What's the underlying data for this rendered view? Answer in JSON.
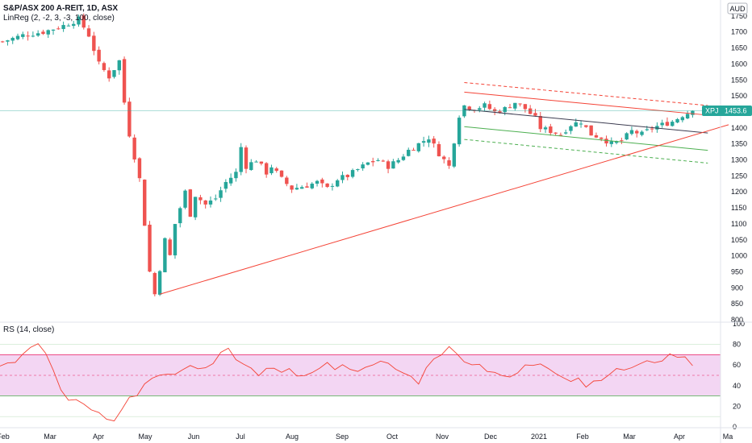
{
  "header": {
    "title": "S&P/ASX 200 A-REIT, 1D, ASX",
    "indicator": "LinReg (2, -2, 3, -3, 100, close)",
    "currency": "AUD"
  },
  "price_tag": {
    "symbol": "XPJ",
    "value": "1453.6"
  },
  "rsi_label": "RS (14, close)",
  "colors": {
    "up": "#26a69a",
    "down": "#ef5350",
    "regression_upper": "#f44336",
    "regression_mid": "#3c3c50",
    "regression_lower": "#4caf50",
    "trendline": "#f44336",
    "rsi_line": "#f44336",
    "rsi_band": "#f3d6f3",
    "price_tag_bg": "#26a69a"
  },
  "chart_data": [
    {
      "type": "candlestick",
      "ylim": [
        800,
        1790
      ],
      "yticks": [
        800,
        850,
        900,
        950,
        1000,
        1050,
        1100,
        1150,
        1200,
        1250,
        1300,
        1350,
        1400,
        1450,
        1500,
        1550,
        1600,
        1650,
        1700,
        1750
      ],
      "xticks": [
        "Feb",
        "Mar",
        "Apr",
        "May",
        "Jun",
        "Jul",
        "Aug",
        "Sep",
        "Oct",
        "Nov",
        "Dec",
        "2021",
        "Feb",
        "Mar",
        "Apr",
        "Ma"
      ],
      "close_path": [
        [
          0,
          1670
        ],
        [
          4,
          1690
        ],
        [
          8,
          1700
        ],
        [
          12,
          1720
        ],
        [
          15,
          1740
        ],
        [
          17,
          1690
        ],
        [
          19,
          1600
        ],
        [
          21,
          1560
        ],
        [
          23,
          1610
        ],
        [
          24,
          1480
        ],
        [
          25,
          1380
        ],
        [
          27,
          1240
        ],
        [
          28,
          1100
        ],
        [
          29,
          950
        ],
        [
          30,
          880
        ],
        [
          31,
          960
        ],
        [
          32,
          1050
        ],
        [
          33,
          1000
        ],
        [
          34,
          1100
        ],
        [
          35,
          1150
        ],
        [
          36,
          1200
        ],
        [
          37,
          1130
        ],
        [
          38,
          1190
        ],
        [
          40,
          1160
        ],
        [
          42,
          1180
        ],
        [
          44,
          1230
        ],
        [
          46,
          1260
        ],
        [
          47,
          1340
        ],
        [
          48,
          1280
        ],
        [
          50,
          1300
        ],
        [
          52,
          1260
        ],
        [
          53,
          1280
        ],
        [
          55,
          1240
        ],
        [
          57,
          1210
        ],
        [
          60,
          1220
        ],
        [
          62,
          1230
        ],
        [
          64,
          1210
        ],
        [
          66,
          1240
        ],
        [
          68,
          1250
        ],
        [
          70,
          1270
        ],
        [
          72,
          1290
        ],
        [
          74,
          1300
        ],
        [
          76,
          1280
        ],
        [
          78,
          1300
        ],
        [
          80,
          1330
        ],
        [
          82,
          1350
        ],
        [
          84,
          1370
        ],
        [
          86,
          1320
        ],
        [
          88,
          1280
        ],
        [
          89,
          1360
        ],
        [
          90,
          1440
        ],
        [
          91,
          1470
        ],
        [
          93,
          1460
        ],
        [
          95,
          1470
        ],
        [
          97,
          1450
        ],
        [
          99,
          1460
        ],
        [
          101,
          1480
        ],
        [
          103,
          1460
        ],
        [
          105,
          1430
        ],
        [
          106,
          1400
        ],
        [
          108,
          1390
        ],
        [
          110,
          1380
        ],
        [
          112,
          1410
        ],
        [
          114,
          1420
        ],
        [
          116,
          1380
        ],
        [
          118,
          1370
        ],
        [
          120,
          1350
        ],
        [
          122,
          1360
        ],
        [
          124,
          1390
        ],
        [
          126,
          1380
        ],
        [
          128,
          1400
        ],
        [
          130,
          1410
        ],
        [
          132,
          1420
        ],
        [
          134,
          1440
        ],
        [
          136,
          1453.6
        ]
      ],
      "last_close": 1453.6,
      "regression_channel": {
        "start_x": 91,
        "end_x": 139,
        "mid": [
          1458,
          1384
        ],
        "upper_inner": [
          1512,
          1440
        ],
        "upper_outer": [
          1542,
          1470
        ],
        "lower_inner": [
          1404,
          1330
        ],
        "lower_outer": [
          1364,
          1290
        ]
      },
      "trendline": {
        "start": [
          31,
          880
        ],
        "end": [
          141,
          1410
        ]
      }
    },
    {
      "type": "line",
      "name": "RSI",
      "ylim": [
        0,
        100
      ],
      "yticks": [
        0,
        20,
        40,
        60,
        80,
        100
      ],
      "band": [
        30,
        70
      ],
      "mid": 50,
      "values": [
        60,
        62,
        65,
        70,
        75,
        78,
        72,
        55,
        35,
        28,
        24,
        22,
        18,
        14,
        10,
        8,
        16,
        28,
        32,
        40,
        46,
        48,
        52,
        50,
        55,
        58,
        54,
        56,
        62,
        70,
        75,
        64,
        58,
        60,
        52,
        56,
        54,
        50,
        58,
        52,
        48,
        54,
        56,
        60,
        58,
        62,
        54,
        56,
        60,
        58,
        62,
        60,
        56,
        52,
        48,
        44,
        56,
        68,
        72,
        76,
        70,
        66,
        62,
        60,
        56,
        54,
        50,
        46,
        52,
        60,
        58,
        62,
        58,
        54,
        50,
        46,
        48,
        40,
        44,
        48,
        52,
        54,
        56,
        58,
        60,
        62,
        64,
        66,
        68,
        70,
        66,
        62
      ]
    }
  ]
}
